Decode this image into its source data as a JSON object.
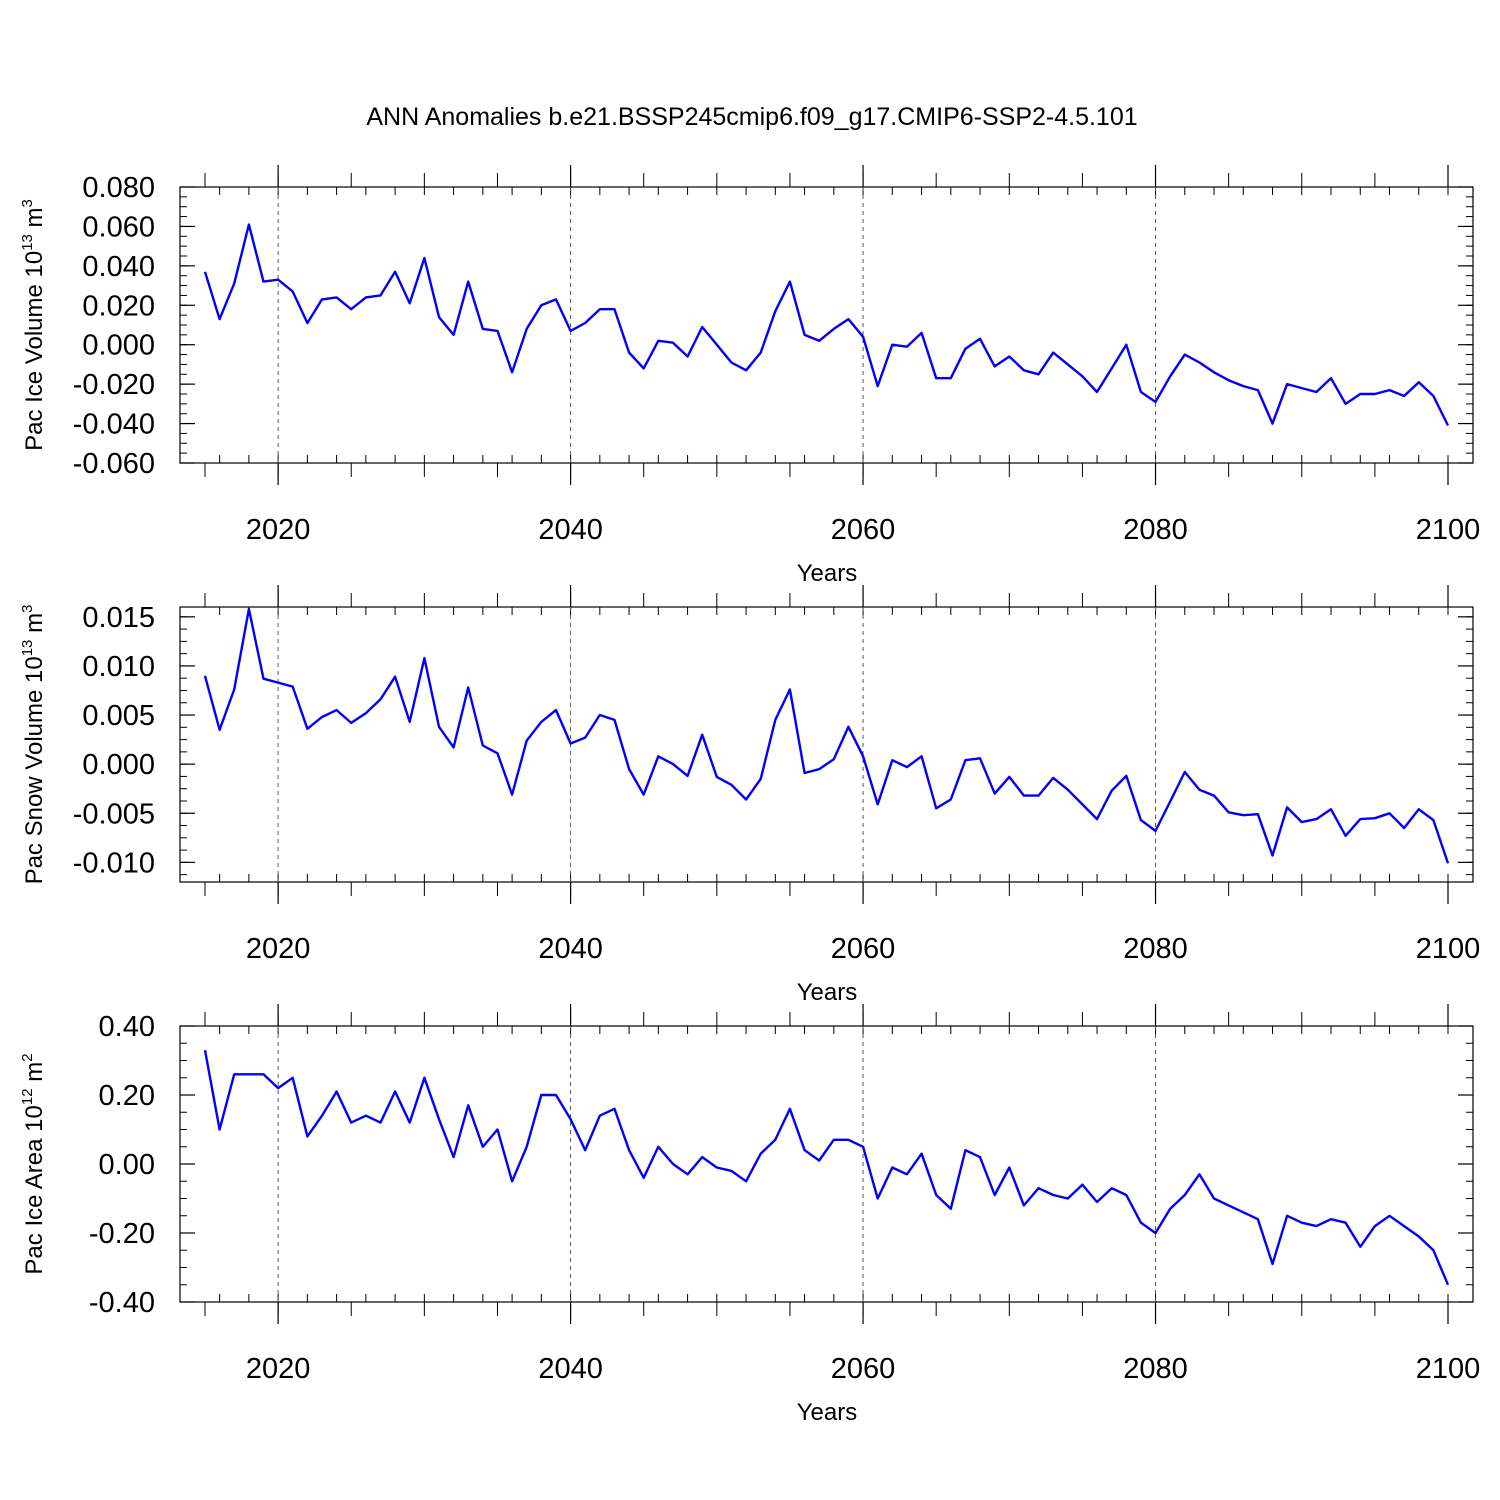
{
  "title": "ANN Anomalies b.e21.BSSP245cmip6.f09_g17.CMIP6-SSP2-4.5.101",
  "colors": {
    "line": "#0000ff",
    "axis": "#000000",
    "grid": "#555555"
  },
  "chart_data": [
    {
      "type": "line",
      "ylabel_main": "Pac Ice Volume 10",
      "ylabel_exp": "13",
      "ylabel_unit": " m",
      "ylabel_unit_exp": "3",
      "xlabel": "Years",
      "xlim": [
        2015,
        2100
      ],
      "ylim": [
        -0.06,
        0.08
      ],
      "yticks": [
        "0.080",
        "0.060",
        "0.040",
        "0.020",
        "0.000",
        "-0.020",
        "-0.040",
        "-0.060"
      ],
      "ytick_values": [
        0.08,
        0.06,
        0.04,
        0.02,
        0.0,
        -0.02,
        -0.04,
        -0.06
      ],
      "xticks": [
        "2020",
        "2040",
        "2060",
        "2080",
        "2100"
      ],
      "xtick_values": [
        2020,
        2040,
        2060,
        2080,
        2100
      ],
      "x": [
        2015,
        2016,
        2017,
        2018,
        2019,
        2020,
        2021,
        2022,
        2023,
        2024,
        2025,
        2026,
        2027,
        2028,
        2029,
        2030,
        2031,
        2032,
        2033,
        2034,
        2035,
        2036,
        2037,
        2038,
        2039,
        2040,
        2041,
        2042,
        2043,
        2044,
        2045,
        2046,
        2047,
        2048,
        2049,
        2050,
        2051,
        2052,
        2053,
        2054,
        2055,
        2056,
        2057,
        2058,
        2059,
        2060,
        2061,
        2062,
        2063,
        2064,
        2065,
        2066,
        2067,
        2068,
        2069,
        2070,
        2071,
        2072,
        2073,
        2074,
        2075,
        2076,
        2077,
        2078,
        2079,
        2080,
        2081,
        2082,
        2083,
        2084,
        2085,
        2086,
        2087,
        2088,
        2089,
        2090,
        2091,
        2092,
        2093,
        2094,
        2095,
        2096,
        2097,
        2098,
        2099,
        2100
      ],
      "values": [
        0.037,
        0.013,
        0.031,
        0.061,
        0.032,
        0.033,
        0.027,
        0.011,
        0.023,
        0.024,
        0.018,
        0.024,
        0.025,
        0.037,
        0.021,
        0.044,
        0.014,
        0.005,
        0.032,
        0.008,
        0.007,
        -0.014,
        0.008,
        0.02,
        0.023,
        0.007,
        0.011,
        0.018,
        0.018,
        -0.004,
        -0.012,
        0.002,
        0.001,
        -0.006,
        0.009,
        0.0,
        -0.009,
        -0.013,
        -0.004,
        0.017,
        0.032,
        0.005,
        0.002,
        0.008,
        0.013,
        0.004,
        -0.021,
        0.0,
        -0.001,
        0.006,
        -0.017,
        -0.017,
        -0.002,
        0.003,
        -0.011,
        -0.006,
        -0.013,
        -0.015,
        -0.004,
        -0.01,
        -0.016,
        -0.024,
        -0.012,
        0.0,
        -0.024,
        -0.029,
        -0.016,
        -0.005,
        -0.009,
        -0.014,
        -0.018,
        -0.021,
        -0.023,
        -0.04,
        -0.02,
        -0.022,
        -0.024,
        -0.017,
        -0.03,
        -0.025,
        -0.025,
        -0.023,
        -0.026,
        -0.019,
        -0.026,
        -0.041
      ]
    },
    {
      "type": "line",
      "ylabel_main": "Pac Snow Volume 10",
      "ylabel_exp": "13",
      "ylabel_unit": " m",
      "ylabel_unit_exp": "3",
      "xlabel": "Years",
      "xlim": [
        2015,
        2100
      ],
      "ylim": [
        -0.012,
        0.016
      ],
      "yticks": [
        "0.015",
        "0.010",
        "0.005",
        "0.000",
        "-0.005",
        "-0.010"
      ],
      "ytick_values": [
        0.015,
        0.01,
        0.005,
        0.0,
        -0.005,
        -0.01
      ],
      "xticks": [
        "2020",
        "2040",
        "2060",
        "2080",
        "2100"
      ],
      "xtick_values": [
        2020,
        2040,
        2060,
        2080,
        2100
      ],
      "x": [
        2015,
        2016,
        2017,
        2018,
        2019,
        2020,
        2021,
        2022,
        2023,
        2024,
        2025,
        2026,
        2027,
        2028,
        2029,
        2030,
        2031,
        2032,
        2033,
        2034,
        2035,
        2036,
        2037,
        2038,
        2039,
        2040,
        2041,
        2042,
        2043,
        2044,
        2045,
        2046,
        2047,
        2048,
        2049,
        2050,
        2051,
        2052,
        2053,
        2054,
        2055,
        2056,
        2057,
        2058,
        2059,
        2060,
        2061,
        2062,
        2063,
        2064,
        2065,
        2066,
        2067,
        2068,
        2069,
        2070,
        2071,
        2072,
        2073,
        2074,
        2075,
        2076,
        2077,
        2078,
        2079,
        2080,
        2081,
        2082,
        2083,
        2084,
        2085,
        2086,
        2087,
        2088,
        2089,
        2090,
        2091,
        2092,
        2093,
        2094,
        2095,
        2096,
        2097,
        2098,
        2099,
        2100
      ],
      "values": [
        0.009,
        0.0035,
        0.0076,
        0.0158,
        0.0087,
        0.0083,
        0.0079,
        0.0036,
        0.0048,
        0.0055,
        0.0042,
        0.0052,
        0.0066,
        0.0089,
        0.0043,
        0.0108,
        0.0038,
        0.0017,
        0.0078,
        0.0019,
        0.0011,
        -0.0031,
        0.0024,
        0.0043,
        0.0055,
        0.0021,
        0.0027,
        0.005,
        0.0045,
        -0.0005,
        -0.0031,
        0.0008,
        0.0,
        -0.0012,
        0.003,
        -0.0013,
        -0.0021,
        -0.0036,
        -0.0015,
        0.0045,
        0.0076,
        -0.0009,
        -0.0005,
        0.0005,
        0.0038,
        0.0008,
        -0.0041,
        0.0004,
        -0.0003,
        0.0008,
        -0.0045,
        -0.0036,
        0.0004,
        0.0006,
        -0.003,
        -0.0013,
        -0.0032,
        -0.0032,
        -0.0014,
        -0.0026,
        -0.0041,
        -0.0056,
        -0.0027,
        -0.0012,
        -0.0057,
        -0.0068,
        -0.0038,
        -0.0008,
        -0.0026,
        -0.0032,
        -0.0049,
        -0.0052,
        -0.0051,
        -0.0093,
        -0.0044,
        -0.0059,
        -0.0056,
        -0.0046,
        -0.0073,
        -0.0056,
        -0.0055,
        -0.005,
        -0.0065,
        -0.0046,
        -0.0057,
        -0.0101
      ]
    },
    {
      "type": "line",
      "ylabel_main": "Pac Ice Area 10",
      "ylabel_exp": "12",
      "ylabel_unit": " m",
      "ylabel_unit_exp": "2",
      "xlabel": "Years",
      "xlim": [
        2015,
        2100
      ],
      "ylim": [
        -0.4,
        0.4
      ],
      "yticks": [
        "0.40",
        "0.20",
        "0.00",
        "-0.20",
        "-0.40"
      ],
      "ytick_values": [
        0.4,
        0.2,
        0.0,
        -0.2,
        -0.4
      ],
      "xticks": [
        "2020",
        "2040",
        "2060",
        "2080",
        "2100"
      ],
      "xtick_values": [
        2020,
        2040,
        2060,
        2080,
        2100
      ],
      "x": [
        2015,
        2016,
        2017,
        2018,
        2019,
        2020,
        2021,
        2022,
        2023,
        2024,
        2025,
        2026,
        2027,
        2028,
        2029,
        2030,
        2031,
        2032,
        2033,
        2034,
        2035,
        2036,
        2037,
        2038,
        2039,
        2040,
        2041,
        2042,
        2043,
        2044,
        2045,
        2046,
        2047,
        2048,
        2049,
        2050,
        2051,
        2052,
        2053,
        2054,
        2055,
        2056,
        2057,
        2058,
        2059,
        2060,
        2061,
        2062,
        2063,
        2064,
        2065,
        2066,
        2067,
        2068,
        2069,
        2070,
        2071,
        2072,
        2073,
        2074,
        2075,
        2076,
        2077,
        2078,
        2079,
        2080,
        2081,
        2082,
        2083,
        2084,
        2085,
        2086,
        2087,
        2088,
        2089,
        2090,
        2091,
        2092,
        2093,
        2094,
        2095,
        2096,
        2097,
        2098,
        2099,
        2100
      ],
      "values": [
        0.33,
        0.1,
        0.26,
        0.26,
        0.26,
        0.22,
        0.25,
        0.08,
        0.14,
        0.21,
        0.12,
        0.14,
        0.12,
        0.21,
        0.12,
        0.25,
        0.13,
        0.02,
        0.17,
        0.05,
        0.1,
        -0.05,
        0.05,
        0.2,
        0.2,
        0.13,
        0.04,
        0.14,
        0.16,
        0.04,
        -0.04,
        0.05,
        0.0,
        -0.03,
        0.02,
        -0.01,
        -0.02,
        -0.05,
        0.03,
        0.07,
        0.16,
        0.04,
        0.01,
        0.07,
        0.07,
        0.05,
        -0.1,
        -0.01,
        -0.03,
        0.03,
        -0.09,
        -0.13,
        0.04,
        0.02,
        -0.09,
        -0.01,
        -0.12,
        -0.07,
        -0.09,
        -0.1,
        -0.06,
        -0.11,
        -0.07,
        -0.09,
        -0.17,
        -0.2,
        -0.13,
        -0.09,
        -0.03,
        -0.1,
        -0.12,
        -0.14,
        -0.16,
        -0.29,
        -0.15,
        -0.17,
        -0.18,
        -0.16,
        -0.17,
        -0.24,
        -0.18,
        -0.15,
        -0.18,
        -0.21,
        -0.25,
        -0.35
      ]
    }
  ]
}
